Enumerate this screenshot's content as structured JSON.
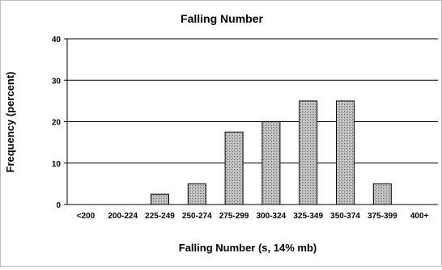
{
  "chart_data": {
    "type": "bar",
    "title": "Falling Number",
    "xlabel": "Falling Number (s, 14% mb)",
    "ylabel": "Frequency (percent)",
    "categories": [
      "<200",
      "200-224",
      "225-249",
      "250-274",
      "275-299",
      "300-324",
      "325-349",
      "350-374",
      "375-399",
      "400+"
    ],
    "values": [
      0,
      0,
      2.5,
      5,
      17.5,
      20,
      25,
      25,
      5,
      0
    ],
    "ylim": [
      0,
      40
    ],
    "yticks": [
      0,
      10,
      20,
      30,
      40
    ],
    "grid": "horizontal",
    "legend": "none",
    "bar_fill": "#b8b8b8",
    "bar_pattern": "stippled"
  }
}
